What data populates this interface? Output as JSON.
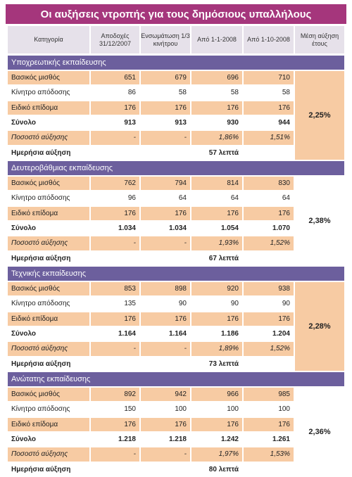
{
  "title": "Οι αυξήσεις ντροπής για τους δημόσιους υπαλλήλους",
  "header": [
    "Κατηγορία",
    "Αποδοχές 31/12/2007",
    "Ενσωμάτωση 1/3 κινήτρου",
    "Από 1-1-2008",
    "Από 1-10-2008",
    "Μέση αύξηση έτους"
  ],
  "sections": [
    {
      "title": "Υποχρεωτικής εκπαίδευσης",
      "average": "2,25%",
      "rows": [
        {
          "label": "Βασικός μισθός",
          "values": [
            "651",
            "679",
            "696",
            "710"
          ]
        },
        {
          "label": "Κίνητρο απόδοσης",
          "values": [
            "86",
            "58",
            "58",
            "58"
          ]
        },
        {
          "label": "Ειδικό επίδομα",
          "values": [
            "176",
            "176",
            "176",
            "176"
          ]
        },
        {
          "label": "Σύνολο",
          "values": [
            "913",
            "913",
            "930",
            "944"
          ]
        },
        {
          "label": "Ποσοστό αύξησης",
          "values": [
            "-",
            "-",
            "1,86%",
            "1,51%"
          ]
        }
      ],
      "daily": {
        "label": "Ημερήσια αύξηση",
        "value": "57 λεπτά"
      }
    },
    {
      "title": "Δευτεροβάθμιας εκπαίδευσης",
      "average": "2,38%",
      "rows": [
        {
          "label": "Βασικός μισθός",
          "values": [
            "762",
            "794",
            "814",
            "830"
          ]
        },
        {
          "label": "Κίνητρο απόδοσης",
          "values": [
            "96",
            "64",
            "64",
            "64"
          ]
        },
        {
          "label": "Ειδικό επίδομα",
          "values": [
            "176",
            "176",
            "176",
            "176"
          ]
        },
        {
          "label": "Σύνολο",
          "values": [
            "1.034",
            "1.034",
            "1.054",
            "1.070"
          ]
        },
        {
          "label": "Ποσοστό αύξησης",
          "values": [
            "-",
            "-",
            "1,93%",
            "1,52%"
          ]
        }
      ],
      "daily": {
        "label": "Ημερήσια αύξηση",
        "value": "67 λεπτά"
      }
    },
    {
      "title": "Τεχνικής εκπαίδευσης",
      "average": "2,28%",
      "rows": [
        {
          "label": "Βασικός μισθός",
          "values": [
            "853",
            "898",
            "920",
            "938"
          ]
        },
        {
          "label": "Κίνητρο απόδοσης",
          "values": [
            "135",
            "90",
            "90",
            "90"
          ]
        },
        {
          "label": "Ειδικό επίδομα",
          "values": [
            "176",
            "176",
            "176",
            "176"
          ]
        },
        {
          "label": "Σύνολο",
          "values": [
            "1.164",
            "1.164",
            "1.186",
            "1.204"
          ]
        },
        {
          "label": "Ποσοστό αύξησης",
          "values": [
            "-",
            "-",
            "1,89%",
            "1,52%"
          ]
        }
      ],
      "daily": {
        "label": "Ημερήσια αύξηση",
        "value": "73 λεπτά"
      }
    },
    {
      "title": "Ανώτατης εκπαίδευσης",
      "average": "2,36%",
      "rows": [
        {
          "label": "Βασικός μισθός",
          "values": [
            "892",
            "942",
            "966",
            "985"
          ]
        },
        {
          "label": "Κίνητρο απόδοσης",
          "values": [
            "150",
            "100",
            "100",
            "100"
          ]
        },
        {
          "label": "Ειδικό επίδομα",
          "values": [
            "176",
            "176",
            "176",
            "176"
          ]
        },
        {
          "label": "Σύνολο",
          "values": [
            "1.218",
            "1.218",
            "1.242",
            "1.261"
          ]
        },
        {
          "label": "Ποσοστό αύξησης",
          "values": [
            "-",
            "-",
            "1,97%",
            "1,53%"
          ]
        }
      ],
      "daily": {
        "label": "Ημερήσια αύξηση",
        "value": "80 λεπτά"
      }
    }
  ]
}
